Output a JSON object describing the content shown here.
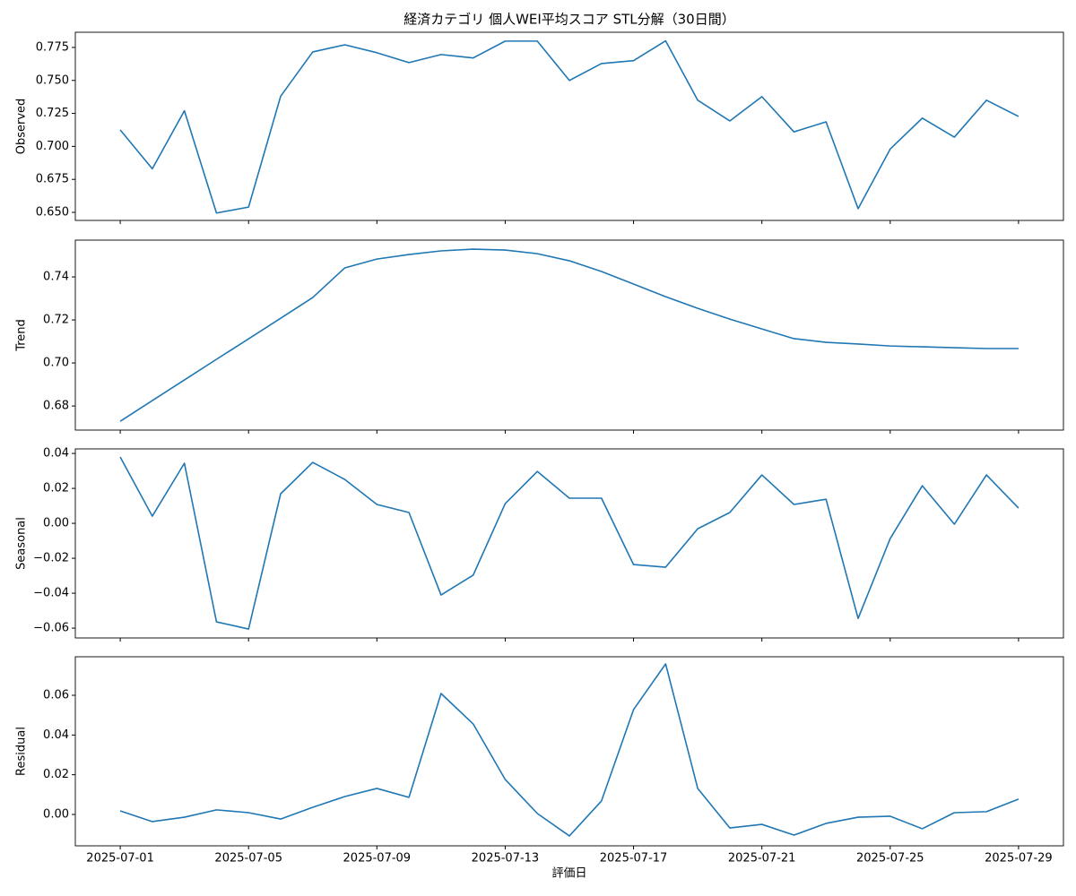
{
  "chart_data": [
    {
      "type": "line",
      "title": "経済カテゴリ 個人WEI平均スコア STL分解（30日間）",
      "ylabel": "Observed",
      "color": "#1f77b4",
      "x": [
        "2025-07-01",
        "2025-07-02",
        "2025-07-03",
        "2025-07-04",
        "2025-07-05",
        "2025-07-06",
        "2025-07-07",
        "2025-07-08",
        "2025-07-09",
        "2025-07-10",
        "2025-07-11",
        "2025-07-12",
        "2025-07-13",
        "2025-07-14",
        "2025-07-15",
        "2025-07-16",
        "2025-07-17",
        "2025-07-18",
        "2025-07-19",
        "2025-07-20",
        "2025-07-21",
        "2025-07-22",
        "2025-07-23",
        "2025-07-24",
        "2025-07-25",
        "2025-07-26",
        "2025-07-27",
        "2025-07-28",
        "2025-07-29"
      ],
      "values": [
        0.7125,
        0.683,
        0.727,
        0.6495,
        0.654,
        0.738,
        0.7716,
        0.777,
        0.771,
        0.7635,
        0.7696,
        0.767,
        0.7798,
        0.7798,
        0.75,
        0.7628,
        0.765,
        0.78,
        0.735,
        0.7193,
        0.7377,
        0.711,
        0.7186,
        0.6528,
        0.698,
        0.7214,
        0.707,
        0.735,
        0.7227
      ],
      "ylim": [
        0.6439,
        0.7865
      ],
      "yticks": [
        {
          "value": 0.65,
          "label": "0.650"
        },
        0.675,
        {
          "value": 0.7,
          "label": "0.700"
        },
        0.725,
        {
          "value": 0.75,
          "label": "0.750"
        },
        0.775
      ]
    },
    {
      "type": "line",
      "ylabel": "Trend",
      "color": "#1f77b4",
      "x": [
        "2025-07-01",
        "2025-07-02",
        "2025-07-03",
        "2025-07-04",
        "2025-07-05",
        "2025-07-06",
        "2025-07-07",
        "2025-07-08",
        "2025-07-09",
        "2025-07-10",
        "2025-07-11",
        "2025-07-12",
        "2025-07-13",
        "2025-07-14",
        "2025-07-15",
        "2025-07-16",
        "2025-07-17",
        "2025-07-18",
        "2025-07-19",
        "2025-07-20",
        "2025-07-21",
        "2025-07-22",
        "2025-07-23",
        "2025-07-24",
        "2025-07-25",
        "2025-07-26",
        "2025-07-27",
        "2025-07-28",
        "2025-07-29"
      ],
      "values": [
        0.6729,
        0.6825,
        0.6921,
        0.7017,
        0.7112,
        0.7208,
        0.7304,
        0.7442,
        0.7483,
        0.7504,
        0.7521,
        0.7529,
        0.7525,
        0.7508,
        0.7475,
        0.7425,
        0.7367,
        0.7308,
        0.7254,
        0.7204,
        0.7158,
        0.7113,
        0.7096,
        0.7088,
        0.7079,
        0.7075,
        0.7071,
        0.7067,
        0.7067
      ],
      "ylim": [
        0.6688,
        0.7571
      ],
      "yticks": [
        0.68,
        {
          "value": 0.7,
          "label": "0.70"
        },
        0.72,
        0.74
      ]
    },
    {
      "type": "line",
      "ylabel": "Seasonal",
      "color": "#1f77b4",
      "x": [
        "2025-07-01",
        "2025-07-02",
        "2025-07-03",
        "2025-07-04",
        "2025-07-05",
        "2025-07-06",
        "2025-07-07",
        "2025-07-08",
        "2025-07-09",
        "2025-07-10",
        "2025-07-11",
        "2025-07-12",
        "2025-07-13",
        "2025-07-14",
        "2025-07-15",
        "2025-07-16",
        "2025-07-17",
        "2025-07-18",
        "2025-07-19",
        "2025-07-20",
        "2025-07-21",
        "2025-07-22",
        "2025-07-23",
        "2025-07-24",
        "2025-07-25",
        "2025-07-26",
        "2025-07-27",
        "2025-07-28",
        "2025-07-29"
      ],
      "values": [
        0.0379,
        0.0041,
        0.0344,
        -0.0564,
        -0.0605,
        0.0169,
        0.0349,
        0.0251,
        0.0108,
        0.0062,
        -0.041,
        -0.0297,
        0.0113,
        0.0297,
        0.0144,
        0.0144,
        -0.0236,
        -0.0251,
        -0.0031,
        0.0062,
        0.0277,
        0.0108,
        0.0138,
        -0.0544,
        -0.0087,
        0.0215,
        -0.0005,
        0.0277,
        0.0087
      ],
      "ylim": [
        -0.0656,
        0.0426
      ],
      "yticks": [
        {
          "value": -0.06,
          "label": "−0.06"
        },
        {
          "value": -0.04,
          "label": "−0.04"
        },
        {
          "value": -0.02,
          "label": "−0.02"
        },
        {
          "value": 0,
          "label": "0.00"
        },
        0.02,
        0.04
      ]
    },
    {
      "type": "line",
      "ylabel": "Residual",
      "xlabel": "評価日",
      "color": "#1f77b4",
      "x": [
        "2025-07-01",
        "2025-07-02",
        "2025-07-03",
        "2025-07-04",
        "2025-07-05",
        "2025-07-06",
        "2025-07-07",
        "2025-07-08",
        "2025-07-09",
        "2025-07-10",
        "2025-07-11",
        "2025-07-12",
        "2025-07-13",
        "2025-07-14",
        "2025-07-15",
        "2025-07-16",
        "2025-07-17",
        "2025-07-18",
        "2025-07-19",
        "2025-07-20",
        "2025-07-21",
        "2025-07-22",
        "2025-07-23",
        "2025-07-24",
        "2025-07-25",
        "2025-07-26",
        "2025-07-27",
        "2025-07-28",
        "2025-07-29"
      ],
      "values": [
        0.0018,
        -0.0036,
        -0.0014,
        0.0023,
        0.0009,
        -0.0023,
        0.0036,
        0.009,
        0.0131,
        0.0086,
        0.0609,
        0.0456,
        0.0176,
        0.0005,
        -0.0108,
        0.0068,
        0.0528,
        0.0758,
        0.0131,
        -0.0068,
        -0.005,
        -0.0104,
        -0.0045,
        -0.0014,
        -0.0009,
        -0.0072,
        0.0009,
        0.0014,
        0.0077
      ],
      "ylim": [
        -0.0158,
        0.0794
      ],
      "yticks": [
        {
          "value": 0,
          "label": "0.00"
        },
        0.02,
        0.04,
        0.06
      ],
      "xticks": [
        "2025-07-01",
        "2025-07-05",
        "2025-07-09",
        "2025-07-13",
        "2025-07-17",
        "2025-07-21",
        "2025-07-25",
        "2025-07-29"
      ]
    }
  ]
}
